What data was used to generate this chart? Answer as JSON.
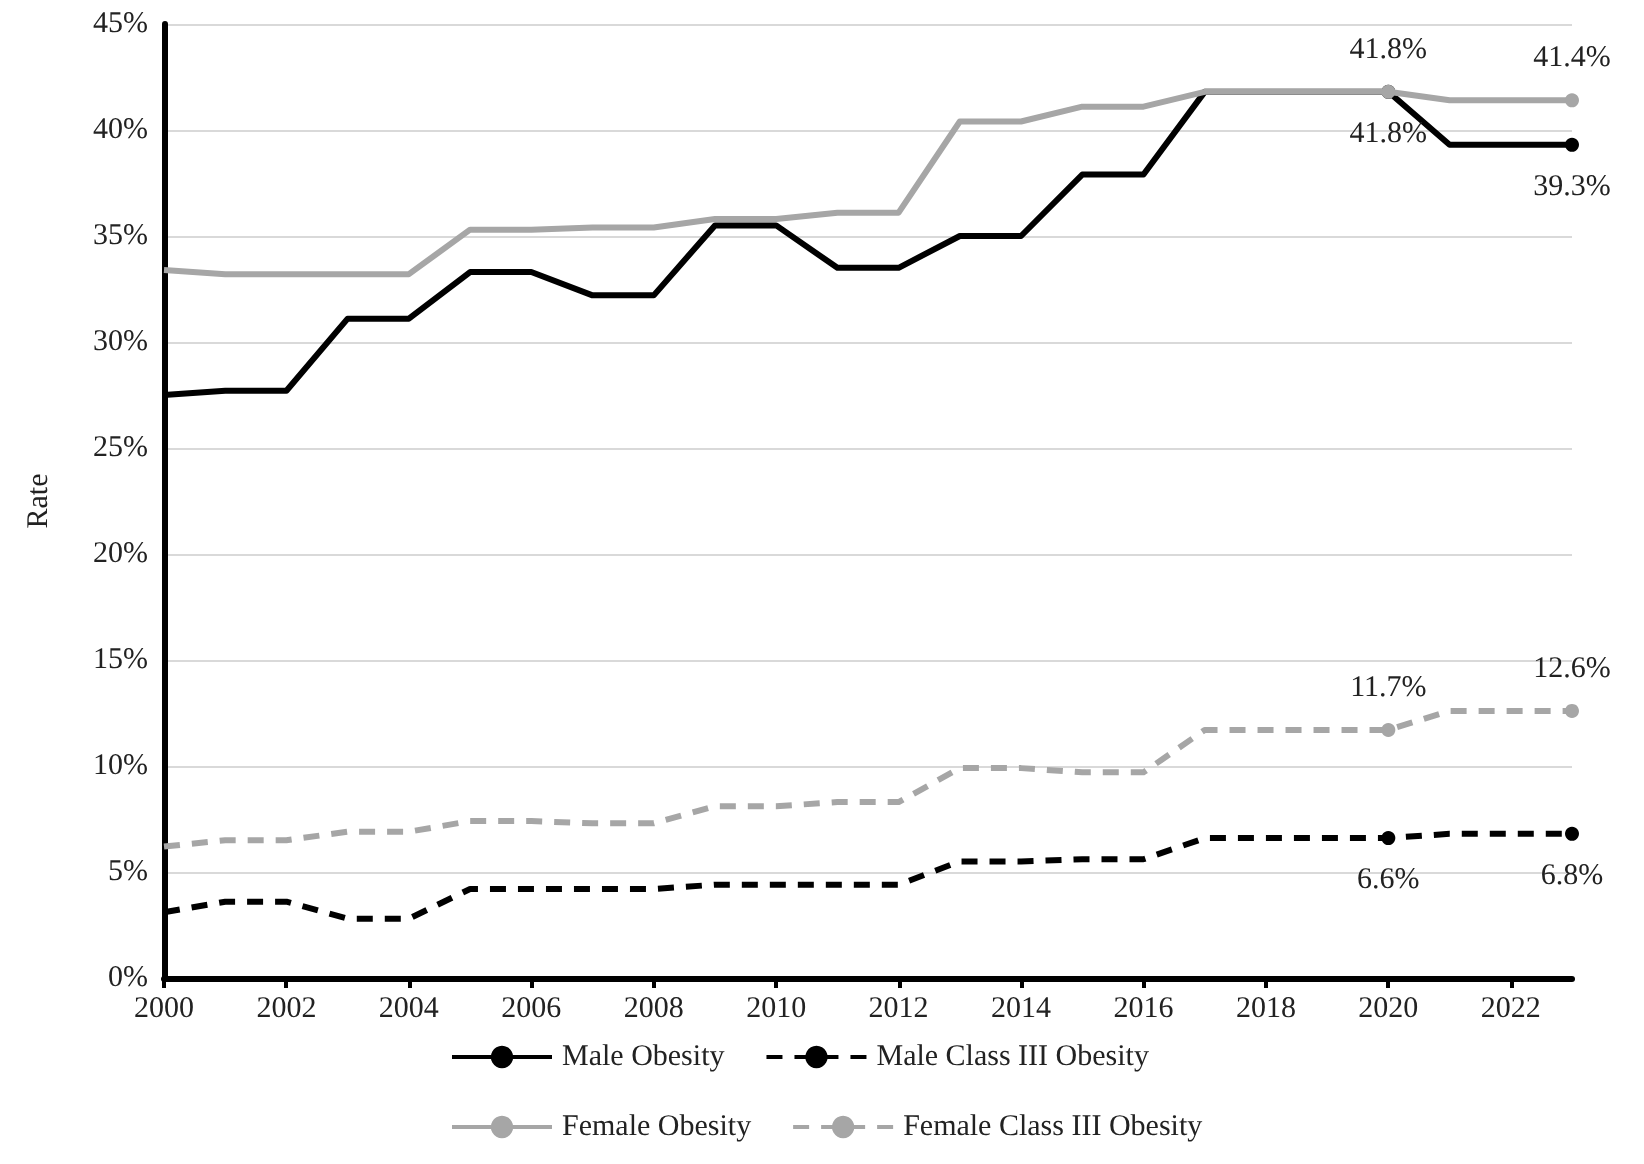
{
  "chart_data": {
    "type": "line",
    "ylabel": "Rate",
    "x": [
      2000,
      2001,
      2002,
      2003,
      2004,
      2005,
      2006,
      2007,
      2008,
      2009,
      2010,
      2011,
      2012,
      2013,
      2014,
      2015,
      2016,
      2017,
      2018,
      2019,
      2020,
      2021,
      2022,
      2023
    ],
    "xlim": [
      2000,
      2023
    ],
    "xticks": [
      2000,
      2002,
      2004,
      2006,
      2008,
      2010,
      2012,
      2014,
      2016,
      2018,
      2020,
      2022
    ],
    "ylim": [
      0,
      45
    ],
    "yticks": [
      {
        "value": 0,
        "label": "0%"
      },
      {
        "value": 5,
        "label": "5%"
      },
      {
        "value": 10,
        "label": "10%"
      },
      {
        "value": 15,
        "label": "15%"
      },
      {
        "value": 20,
        "label": "20%"
      },
      {
        "value": 25,
        "label": "25%"
      },
      {
        "value": 30,
        "label": "30%"
      },
      {
        "value": 35,
        "label": "35%"
      },
      {
        "value": 40,
        "label": "40%"
      },
      {
        "value": 45,
        "label": "45%"
      }
    ],
    "grid": "y",
    "legend": "bottom",
    "series": [
      {
        "name": "Male Obesity",
        "color": "#000000",
        "line_style": "solid",
        "values": [
          27.5,
          27.7,
          27.7,
          31.1,
          31.1,
          33.3,
          33.3,
          32.2,
          32.2,
          35.5,
          35.5,
          33.5,
          33.5,
          35.0,
          35.0,
          37.9,
          37.9,
          41.8,
          41.8,
          41.8,
          41.8,
          39.3,
          39.3,
          39.3
        ],
        "value_labels": [
          null,
          null,
          null,
          null,
          null,
          null,
          null,
          null,
          null,
          null,
          null,
          null,
          null,
          null,
          null,
          null,
          null,
          null,
          null,
          null,
          "41.8%",
          null,
          null,
          "39.3%"
        ]
      },
      {
        "name": "Female Obesity",
        "color": "#a6a6a6",
        "line_style": "solid",
        "values": [
          33.4,
          33.2,
          33.2,
          33.2,
          33.2,
          35.3,
          35.3,
          35.4,
          35.4,
          35.8,
          35.8,
          36.1,
          36.1,
          40.4,
          40.4,
          41.1,
          41.1,
          41.8,
          41.8,
          41.8,
          41.8,
          41.4,
          41.4,
          41.4
        ],
        "value_labels": [
          null,
          null,
          null,
          null,
          null,
          null,
          null,
          null,
          null,
          null,
          null,
          null,
          null,
          null,
          null,
          null,
          null,
          null,
          null,
          null,
          "41.8%",
          null,
          null,
          "41.4%"
        ]
      },
      {
        "name": "Male Class III Obesity",
        "color": "#000000",
        "line_style": "dashed",
        "values": [
          3.1,
          3.6,
          3.6,
          2.8,
          2.8,
          4.2,
          4.2,
          4.2,
          4.2,
          4.4,
          4.4,
          4.4,
          4.4,
          5.5,
          5.5,
          5.6,
          5.6,
          6.6,
          6.6,
          6.6,
          6.6,
          6.8,
          6.8,
          6.8
        ],
        "value_labels": [
          null,
          null,
          null,
          null,
          null,
          null,
          null,
          null,
          null,
          null,
          null,
          null,
          null,
          null,
          null,
          null,
          null,
          null,
          null,
          null,
          "6.6%",
          null,
          null,
          "6.8%"
        ]
      },
      {
        "name": "Female Class III Obesity",
        "color": "#a6a6a6",
        "line_style": "dashed",
        "values": [
          6.2,
          6.5,
          6.5,
          6.9,
          6.9,
          7.4,
          7.4,
          7.3,
          7.3,
          8.1,
          8.1,
          8.3,
          8.3,
          9.9,
          9.9,
          9.7,
          9.7,
          11.7,
          11.7,
          11.7,
          11.7,
          12.6,
          12.6,
          12.6
        ],
        "value_labels": [
          null,
          null,
          null,
          null,
          null,
          null,
          null,
          null,
          null,
          null,
          null,
          null,
          null,
          null,
          null,
          null,
          null,
          null,
          null,
          null,
          "11.7%",
          null,
          null,
          "12.6%"
        ]
      }
    ]
  }
}
